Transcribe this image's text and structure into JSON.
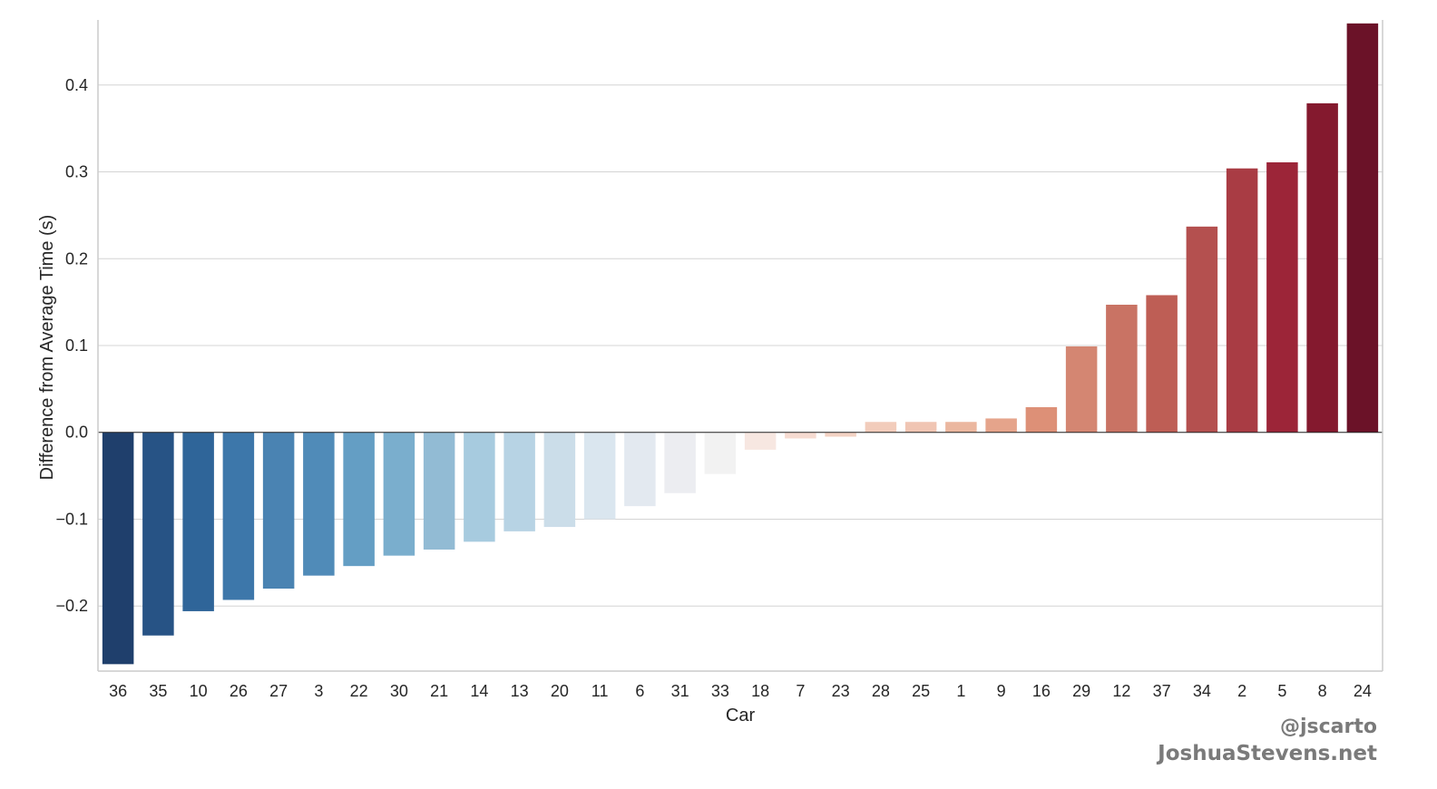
{
  "chart_data": {
    "type": "bar",
    "title": "",
    "xlabel": "Car",
    "ylabel": "Difference from Average Time (s)",
    "ylim": [
      -0.275,
      0.475
    ],
    "yticks": [
      -0.2,
      -0.1,
      0.0,
      0.1,
      0.2,
      0.3,
      0.4
    ],
    "ytick_labels": [
      "−0.2",
      "−0.1",
      "0.0",
      "0.1",
      "0.2",
      "0.3",
      "0.4"
    ],
    "grid": "horizontal",
    "categories": [
      "36",
      "35",
      "10",
      "26",
      "27",
      "3",
      "22",
      "30",
      "21",
      "14",
      "13",
      "20",
      "11",
      "6",
      "31",
      "33",
      "18",
      "7",
      "23",
      "28",
      "25",
      "1",
      "9",
      "16",
      "29",
      "12",
      "37",
      "34",
      "2",
      "5",
      "8",
      "24"
    ],
    "values": [
      -0.267,
      -0.234,
      -0.206,
      -0.193,
      -0.18,
      -0.165,
      -0.154,
      -0.142,
      -0.135,
      -0.126,
      -0.114,
      -0.109,
      -0.1,
      -0.085,
      -0.07,
      -0.048,
      -0.02,
      -0.007,
      -0.005,
      0.012,
      0.012,
      0.012,
      0.016,
      0.029,
      0.099,
      0.147,
      0.158,
      0.237,
      0.304,
      0.311,
      0.379,
      0.471
    ],
    "colors": [
      "#1f3f6c",
      "#275385",
      "#2f6599",
      "#3d77aa",
      "#4a83b2",
      "#508bb8",
      "#649ec4",
      "#7aaecd",
      "#92bbd4",
      "#a7cbdf",
      "#b7d3e4",
      "#cbdde9",
      "#dae6ef",
      "#e3e9f0",
      "#ecedf1",
      "#f2f2f2",
      "#f7e7e1",
      "#f6dbd1",
      "#f3d2c3",
      "#f2ccbb",
      "#f0c5b3",
      "#ebb79f",
      "#e5a48b",
      "#dd9077",
      "#d48672",
      "#c97364",
      "#be5e55",
      "#b4504f",
      "#a93c44",
      "#9c2538",
      "#84192e",
      "#6b1228"
    ]
  },
  "credits": {
    "handle": "@jscarto",
    "site": "JoshuaStevens.net"
  }
}
